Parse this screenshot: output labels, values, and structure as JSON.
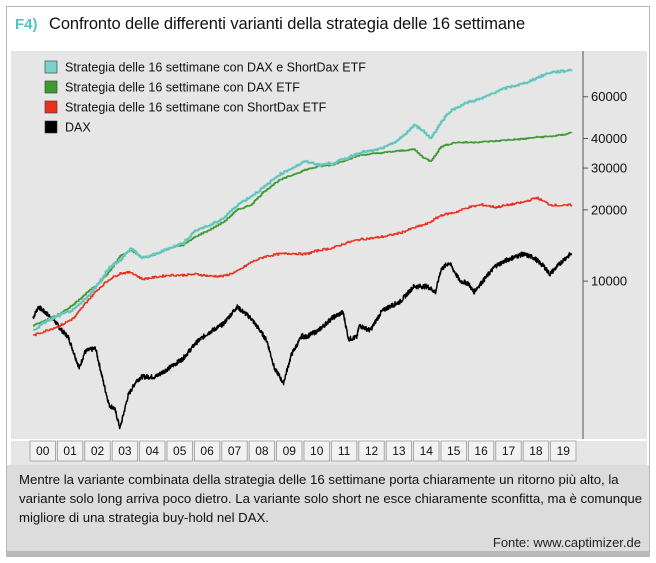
{
  "figure": {
    "label": "F4)",
    "title": "Confronto delle differenti varianti della strategia delle 16 settimane"
  },
  "caption": {
    "text": "Mentre la variante combinata della strategia delle 16 settimane porta chiaramente un ritorno più alto, la variante solo long arriva poco dietro. La variante solo short ne esce chiaramente sconfitta, ma è comunque migliore di una strategia buy-hold nel DAX.",
    "source": "Fonte: www.captimizer.de"
  },
  "colors": {
    "combined": "#79d3cc",
    "long": "#3f9a32",
    "short": "#e8321e",
    "dax": "#000000",
    "label": "#5bbfc2",
    "panel": "#e6e6e6"
  },
  "chart_data": {
    "type": "line",
    "scale": "log",
    "x_tick_labels": [
      "00",
      "01",
      "02",
      "03",
      "04",
      "05",
      "06",
      "07",
      "08",
      "09",
      "10",
      "11",
      "12",
      "13",
      "14",
      "15",
      "16",
      "17",
      "18",
      "19"
    ],
    "y_ticks": [
      10000,
      20000,
      30000,
      40000,
      60000
    ],
    "y_tick_labels": [
      "10000",
      "20000",
      "30000",
      "40000",
      "60000"
    ],
    "ylim": [
      2200,
      90000
    ],
    "xlim": [
      2000,
      2020
    ],
    "legend_position": "top-left",
    "series": [
      {
        "name": "Strategia delle 16 settimane con DAX e ShortDax ETF",
        "color_key": "combined",
        "points": [
          [
            2000,
            6200
          ],
          [
            2000.5,
            6800
          ],
          [
            2001,
            7200
          ],
          [
            2001.5,
            7600
          ],
          [
            2002,
            8600
          ],
          [
            2002.4,
            9800
          ],
          [
            2002.8,
            11500
          ],
          [
            2003.2,
            12300
          ],
          [
            2003.6,
            13800
          ],
          [
            2004,
            12500
          ],
          [
            2004.5,
            13000
          ],
          [
            2005,
            13800
          ],
          [
            2005.5,
            14500
          ],
          [
            2006,
            16500
          ],
          [
            2006.5,
            17200
          ],
          [
            2007,
            18500
          ],
          [
            2007.5,
            21000
          ],
          [
            2008,
            22800
          ],
          [
            2008.5,
            25000
          ],
          [
            2009,
            28000
          ],
          [
            2009.5,
            30000
          ],
          [
            2010,
            32000
          ],
          [
            2010.5,
            31000
          ],
          [
            2011,
            31500
          ],
          [
            2011.5,
            33000
          ],
          [
            2012,
            35000
          ],
          [
            2012.5,
            35500
          ],
          [
            2013,
            37000
          ],
          [
            2013.5,
            40000
          ],
          [
            2014,
            45500
          ],
          [
            2014.3,
            43500
          ],
          [
            2014.6,
            40000
          ],
          [
            2015,
            47000
          ],
          [
            2015.3,
            52000
          ],
          [
            2015.7,
            55000
          ],
          [
            2016,
            57000
          ],
          [
            2016.5,
            59000
          ],
          [
            2017,
            63000
          ],
          [
            2017.5,
            66000
          ],
          [
            2018,
            68000
          ],
          [
            2018.5,
            72000
          ],
          [
            2019,
            76000
          ],
          [
            2019.5,
            77000
          ],
          [
            2019.8,
            78000
          ]
        ]
      },
      {
        "name": "Strategia delle 16 settimane con DAX ETF",
        "color_key": "long",
        "points": [
          [
            2000,
            6500
          ],
          [
            2000.5,
            6900
          ],
          [
            2001,
            7300
          ],
          [
            2001.5,
            8000
          ],
          [
            2002,
            9000
          ],
          [
            2002.4,
            9800
          ],
          [
            2002.8,
            11000
          ],
          [
            2003.2,
            12800
          ],
          [
            2003.6,
            13500
          ],
          [
            2004,
            12500
          ],
          [
            2004.5,
            13000
          ],
          [
            2005,
            13800
          ],
          [
            2005.5,
            14200
          ],
          [
            2006,
            15500
          ],
          [
            2006.5,
            16500
          ],
          [
            2007,
            17800
          ],
          [
            2007.5,
            20000
          ],
          [
            2008,
            21000
          ],
          [
            2008.5,
            24000
          ],
          [
            2009,
            26500
          ],
          [
            2009.5,
            28000
          ],
          [
            2010,
            29500
          ],
          [
            2010.5,
            30500
          ],
          [
            2011,
            31000
          ],
          [
            2011.5,
            32500
          ],
          [
            2012,
            34000
          ],
          [
            2012.5,
            34500
          ],
          [
            2013,
            35000
          ],
          [
            2013.5,
            35500
          ],
          [
            2014,
            36000
          ],
          [
            2014.3,
            33500
          ],
          [
            2014.6,
            32000
          ],
          [
            2015,
            37000
          ],
          [
            2015.5,
            38500
          ],
          [
            2016,
            38500
          ],
          [
            2016.5,
            38700
          ],
          [
            2017,
            39000
          ],
          [
            2017.5,
            39500
          ],
          [
            2018,
            39800
          ],
          [
            2018.5,
            40500
          ],
          [
            2019,
            40800
          ],
          [
            2019.5,
            41500
          ],
          [
            2019.8,
            42500
          ]
        ]
      },
      {
        "name": "Strategia delle 16 settimane con ShortDax ETF",
        "color_key": "short",
        "points": [
          [
            2000,
            5900
          ],
          [
            2000.5,
            6200
          ],
          [
            2001,
            6500
          ],
          [
            2001.5,
            7000
          ],
          [
            2002,
            8300
          ],
          [
            2002.4,
            9300
          ],
          [
            2002.8,
            10200
          ],
          [
            2003.2,
            10800
          ],
          [
            2003.6,
            10900
          ],
          [
            2004,
            10200
          ],
          [
            2004.5,
            10400
          ],
          [
            2005,
            10600
          ],
          [
            2005.5,
            10600
          ],
          [
            2006,
            10700
          ],
          [
            2006.5,
            10500
          ],
          [
            2007,
            10500
          ],
          [
            2007.5,
            11000
          ],
          [
            2008,
            12000
          ],
          [
            2008.5,
            12700
          ],
          [
            2009,
            13000
          ],
          [
            2009.5,
            13100
          ],
          [
            2010,
            13000
          ],
          [
            2010.5,
            13500
          ],
          [
            2011,
            13800
          ],
          [
            2011.5,
            14500
          ],
          [
            2012,
            15000
          ],
          [
            2012.5,
            15200
          ],
          [
            2013,
            15500
          ],
          [
            2013.5,
            16000
          ],
          [
            2014,
            16800
          ],
          [
            2014.5,
            17500
          ],
          [
            2015,
            19000
          ],
          [
            2015.5,
            19500
          ],
          [
            2016,
            20500
          ],
          [
            2016.5,
            21000
          ],
          [
            2017,
            20500
          ],
          [
            2017.5,
            21000
          ],
          [
            2018,
            21500
          ],
          [
            2018.5,
            22500
          ],
          [
            2019,
            21000
          ],
          [
            2019.5,
            20800
          ],
          [
            2019.8,
            21000
          ]
        ]
      },
      {
        "name": "DAX",
        "color_key": "dax",
        "points": [
          [
            2000,
            7000
          ],
          [
            2000.2,
            7800
          ],
          [
            2000.5,
            7300
          ],
          [
            2000.8,
            6800
          ],
          [
            2001,
            6300
          ],
          [
            2001.3,
            5800
          ],
          [
            2001.7,
            4300
          ],
          [
            2001.9,
            5000
          ],
          [
            2002,
            5100
          ],
          [
            2002.3,
            5200
          ],
          [
            2002.6,
            3700
          ],
          [
            2002.8,
            3000
          ],
          [
            2003,
            2900
          ],
          [
            2003.2,
            2400
          ],
          [
            2003.5,
            3300
          ],
          [
            2003.8,
            3800
          ],
          [
            2004,
            3950
          ],
          [
            2004.5,
            3950
          ],
          [
            2005,
            4300
          ],
          [
            2005.5,
            4700
          ],
          [
            2006,
            5500
          ],
          [
            2006.4,
            6000
          ],
          [
            2006.8,
            6400
          ],
          [
            2007,
            6600
          ],
          [
            2007.5,
            7800
          ],
          [
            2008,
            7000
          ],
          [
            2008.3,
            6300
          ],
          [
            2008.6,
            5600
          ],
          [
            2008.9,
            4200
          ],
          [
            2009,
            4100
          ],
          [
            2009.2,
            3700
          ],
          [
            2009.5,
            4900
          ],
          [
            2009.9,
            5900
          ],
          [
            2010,
            5800
          ],
          [
            2010.5,
            6200
          ],
          [
            2011,
            7000
          ],
          [
            2011.4,
            7400
          ],
          [
            2011.6,
            5700
          ],
          [
            2011.9,
            5800
          ],
          [
            2012,
            6500
          ],
          [
            2012.4,
            6200
          ],
          [
            2012.8,
            7400
          ],
          [
            2013,
            7700
          ],
          [
            2013.5,
            8200
          ],
          [
            2014,
            9500
          ],
          [
            2014.5,
            9500
          ],
          [
            2014.8,
            9000
          ],
          [
            2015,
            11200
          ],
          [
            2015.3,
            12000
          ],
          [
            2015.7,
            10000
          ],
          [
            2016,
            9800
          ],
          [
            2016.2,
            9000
          ],
          [
            2016.6,
            10200
          ],
          [
            2017,
            11600
          ],
          [
            2017.5,
            12400
          ],
          [
            2018,
            13000
          ],
          [
            2018.4,
            12600
          ],
          [
            2018.8,
            11500
          ],
          [
            2019,
            10700
          ],
          [
            2019.5,
            12300
          ],
          [
            2019.8,
            13100
          ]
        ]
      }
    ]
  }
}
